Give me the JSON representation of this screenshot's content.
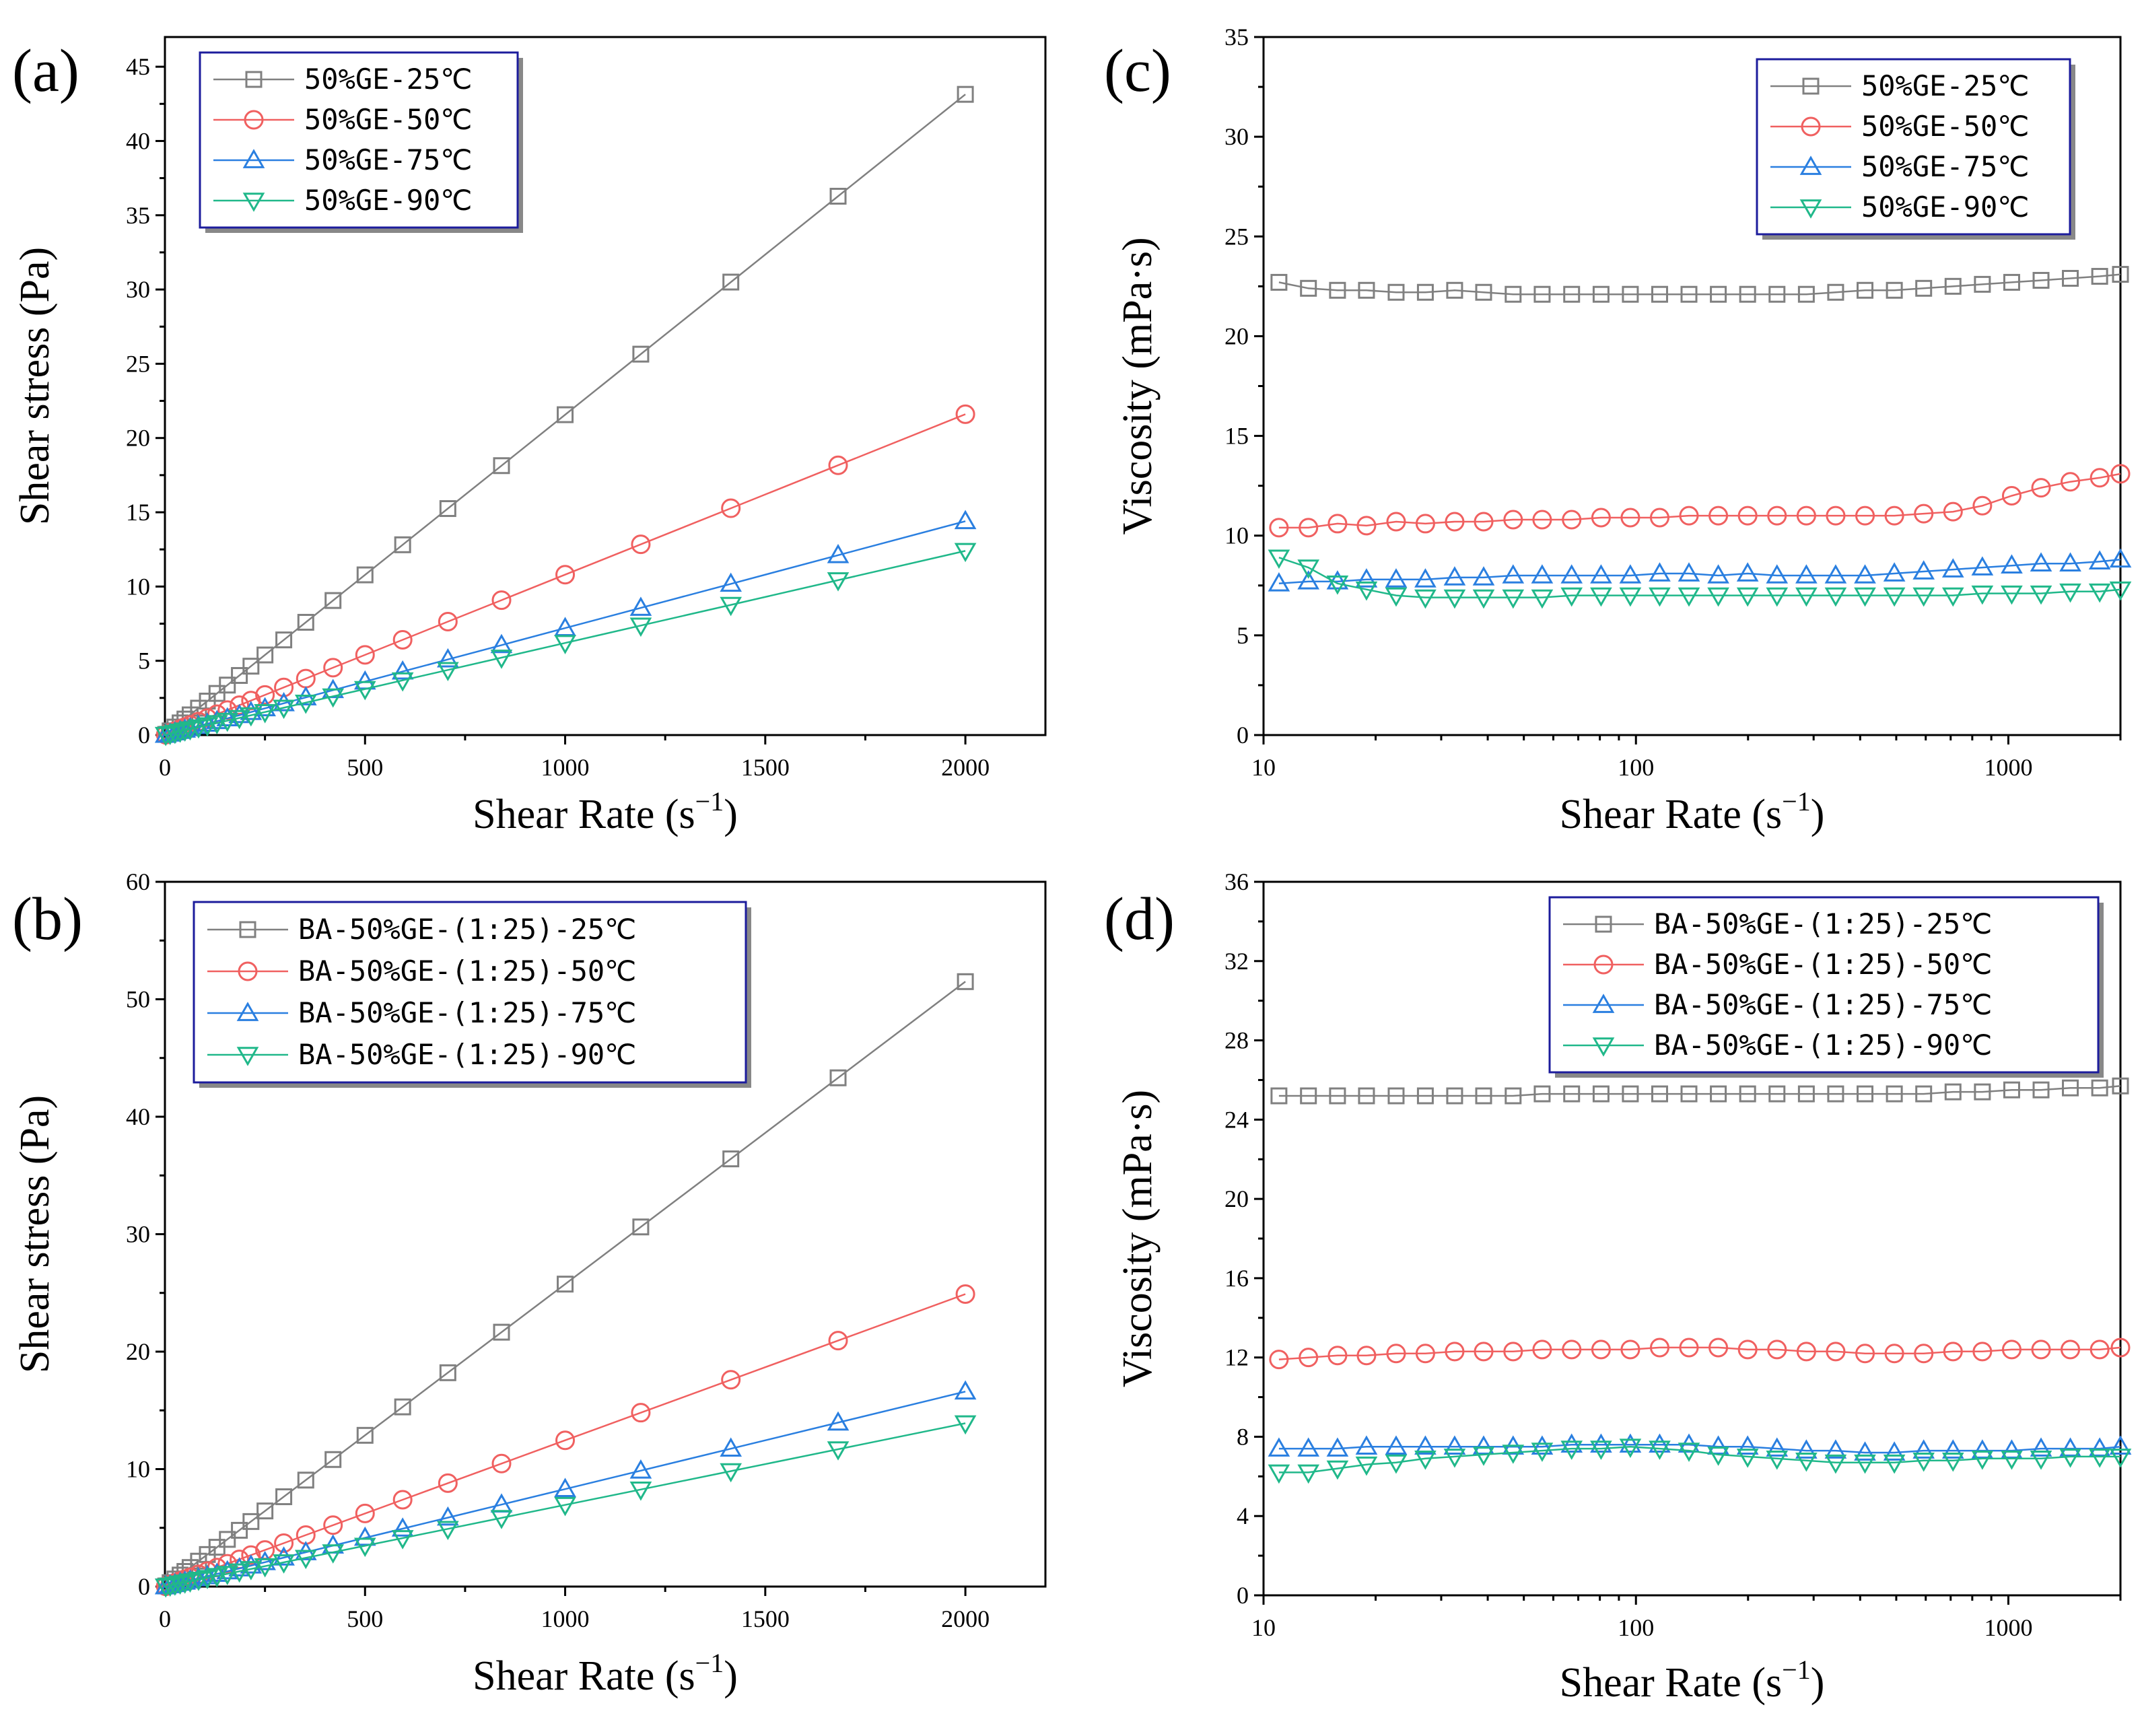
{
  "colors": {
    "s25": "#808080",
    "s50": "#f06060",
    "s75": "#2a7fe0",
    "s90": "#20b88a"
  },
  "chart_data": [
    {
      "panel": "(a)",
      "type": "line",
      "xscale": "linear",
      "xlabel": "Shear Rate (s",
      "xlabel_sup": "−1",
      "xlabel_close": ")",
      "ylabel": "Shear stress (Pa)",
      "xlim": [
        0,
        2200
      ],
      "ylim": [
        0,
        47
      ],
      "xticks": [
        0,
        500,
        1000,
        1500,
        2000
      ],
      "yticks": [
        0,
        5,
        10,
        15,
        20,
        25,
        30,
        35,
        40,
        45
      ],
      "x": [
        2,
        13,
        25,
        38,
        50,
        63,
        84,
        106,
        130,
        156,
        186,
        215,
        250,
        297,
        352,
        420,
        500,
        594,
        707,
        841,
        1000,
        1189,
        1414,
        1682,
        2000
      ],
      "series": [
        {
          "name": "50%GE-25℃",
          "marker": "square",
          "color_key": "s25",
          "slope": 0.02157
        },
        {
          "name": "50%GE-50℃",
          "marker": "circle",
          "color_key": "s50",
          "slope": 0.0108
        },
        {
          "name": "50%GE-75℃",
          "marker": "triangle-up",
          "color_key": "s75",
          "slope": 0.0072
        },
        {
          "name": "50%GE-90℃",
          "marker": "triangle-down",
          "color_key": "s90",
          "slope": 0.0062
        }
      ]
    },
    {
      "panel": "(b)",
      "type": "line",
      "xscale": "linear",
      "xlabel": "Shear Rate (s",
      "xlabel_sup": "−1",
      "xlabel_close": ")",
      "ylabel": "Shear stress (Pa)",
      "xlim": [
        0,
        2200
      ],
      "ylim": [
        0,
        60
      ],
      "xticks": [
        0,
        500,
        1000,
        1500,
        2000
      ],
      "yticks": [
        0,
        10,
        20,
        30,
        40,
        50,
        60
      ],
      "x": [
        2,
        13,
        25,
        38,
        50,
        63,
        84,
        106,
        130,
        156,
        186,
        215,
        250,
        297,
        352,
        420,
        500,
        594,
        707,
        841,
        1000,
        1189,
        1414,
        1682,
        2000
      ],
      "series": [
        {
          "name": "BA-50%GE-(1:25)-25℃",
          "marker": "square",
          "color_key": "s25",
          "slope": 0.02575
        },
        {
          "name": "BA-50%GE-(1:25)-50℃",
          "marker": "circle",
          "color_key": "s50",
          "slope": 0.01245
        },
        {
          "name": "BA-50%GE-(1:25)-75℃",
          "marker": "triangle-up",
          "color_key": "s75",
          "slope": 0.0083
        },
        {
          "name": "BA-50%GE-(1:25)-90℃",
          "marker": "triangle-down",
          "color_key": "s90",
          "slope": 0.00695
        }
      ]
    },
    {
      "panel": "(c)",
      "type": "line",
      "xscale": "log",
      "xlabel": "Shear Rate (s",
      "xlabel_sup": "−1",
      "xlabel_close": ")",
      "ylabel": "Viscosity (mPa·s)",
      "xlim": [
        10,
        2000
      ],
      "ylim": [
        0,
        35
      ],
      "xticks": [
        10,
        100,
        1000
      ],
      "yticks": [
        0,
        5,
        10,
        15,
        20,
        25,
        30,
        35
      ],
      "x": [
        11,
        13.2,
        15.8,
        18.9,
        22.7,
        27.2,
        32.6,
        39,
        46.8,
        56,
        67.2,
        80.6,
        96.6,
        115.8,
        138.8,
        166.4,
        199.5,
        239.2,
        286.8,
        343.8,
        412.2,
        494.2,
        592.5,
        710.3,
        851.6,
        1021,
        1224,
        1467,
        1759,
        2000
      ],
      "series": [
        {
          "name": "50%GE-25℃",
          "marker": "square",
          "color_key": "s25",
          "values": [
            22.7,
            22.4,
            22.3,
            22.3,
            22.2,
            22.2,
            22.3,
            22.2,
            22.1,
            22.1,
            22.1,
            22.1,
            22.1,
            22.1,
            22.1,
            22.1,
            22.1,
            22.1,
            22.1,
            22.2,
            22.3,
            22.3,
            22.4,
            22.5,
            22.6,
            22.7,
            22.8,
            22.9,
            23,
            23.1
          ]
        },
        {
          "name": "50%GE-50℃",
          "marker": "circle",
          "color_key": "s50",
          "values": [
            10.4,
            10.4,
            10.6,
            10.5,
            10.7,
            10.6,
            10.7,
            10.7,
            10.8,
            10.8,
            10.8,
            10.9,
            10.9,
            10.9,
            11,
            11,
            11,
            11,
            11,
            11,
            11,
            11,
            11.1,
            11.2,
            11.5,
            12,
            12.4,
            12.7,
            12.9,
            13.1
          ]
        },
        {
          "name": "50%GE-75℃",
          "marker": "triangle-up",
          "color_key": "s75",
          "values": [
            7.6,
            7.7,
            7.7,
            7.8,
            7.8,
            7.8,
            7.9,
            7.9,
            8,
            8,
            8,
            8,
            8,
            8.1,
            8.1,
            8,
            8.1,
            8,
            8,
            8,
            8,
            8.1,
            8.2,
            8.3,
            8.4,
            8.5,
            8.6,
            8.6,
            8.7,
            8.8
          ]
        },
        {
          "name": "50%GE-90℃",
          "marker": "triangle-down",
          "color_key": "s90",
          "values": [
            8.9,
            8.4,
            7.6,
            7.3,
            7,
            6.9,
            6.9,
            6.9,
            6.9,
            6.9,
            7,
            7,
            7,
            7,
            7,
            7,
            7,
            7,
            7,
            7,
            7,
            7,
            7,
            7,
            7.1,
            7.1,
            7.1,
            7.2,
            7.2,
            7.3
          ]
        }
      ]
    },
    {
      "panel": "(d)",
      "type": "line",
      "xscale": "log",
      "xlabel": "Shear Rate (s",
      "xlabel_sup": "−1",
      "xlabel_close": ")",
      "ylabel": "Viscosity (mPa·s)",
      "xlim": [
        10,
        2000
      ],
      "ylim": [
        0,
        36
      ],
      "xticks": [
        10,
        100,
        1000
      ],
      "yticks": [
        0,
        4,
        8,
        12,
        16,
        20,
        24,
        28,
        32,
        36
      ],
      "x": [
        11,
        13.2,
        15.8,
        18.9,
        22.7,
        27.2,
        32.6,
        39,
        46.8,
        56,
        67.2,
        80.6,
        96.6,
        115.8,
        138.8,
        166.4,
        199.5,
        239.2,
        286.8,
        343.8,
        412.2,
        494.2,
        592.5,
        710.3,
        851.6,
        1021,
        1224,
        1467,
        1759,
        2000
      ],
      "series": [
        {
          "name": "BA-50%GE-(1:25)-25℃",
          "marker": "square",
          "color_key": "s25",
          "values": [
            25.2,
            25.2,
            25.2,
            25.2,
            25.2,
            25.2,
            25.2,
            25.2,
            25.2,
            25.3,
            25.3,
            25.3,
            25.3,
            25.3,
            25.3,
            25.3,
            25.3,
            25.3,
            25.3,
            25.3,
            25.3,
            25.3,
            25.3,
            25.4,
            25.4,
            25.5,
            25.5,
            25.6,
            25.6,
            25.7
          ]
        },
        {
          "name": "BA-50%GE-(1:25)-50℃",
          "marker": "circle",
          "color_key": "s50",
          "values": [
            11.9,
            12,
            12.1,
            12.1,
            12.2,
            12.2,
            12.3,
            12.3,
            12.3,
            12.4,
            12.4,
            12.4,
            12.4,
            12.5,
            12.5,
            12.5,
            12.4,
            12.4,
            12.3,
            12.3,
            12.2,
            12.2,
            12.2,
            12.3,
            12.3,
            12.4,
            12.4,
            12.4,
            12.4,
            12.5
          ]
        },
        {
          "name": "BA-50%GE-(1:25)-75℃",
          "marker": "triangle-up",
          "color_key": "s75",
          "values": [
            7.4,
            7.4,
            7.4,
            7.5,
            7.5,
            7.5,
            7.5,
            7.5,
            7.5,
            7.5,
            7.6,
            7.6,
            7.6,
            7.6,
            7.6,
            7.5,
            7.5,
            7.4,
            7.3,
            7.3,
            7.2,
            7.2,
            7.3,
            7.3,
            7.3,
            7.3,
            7.4,
            7.4,
            7.4,
            7.5
          ]
        },
        {
          "name": "BA-50%GE-(1:25)-90℃",
          "marker": "triangle-down",
          "color_key": "s90",
          "values": [
            6.2,
            6.2,
            6.4,
            6.6,
            6.7,
            6.9,
            7,
            7.1,
            7.2,
            7.3,
            7.4,
            7.4,
            7.5,
            7.4,
            7.3,
            7.1,
            7,
            6.9,
            6.8,
            6.7,
            6.7,
            6.7,
            6.8,
            6.8,
            6.9,
            6.9,
            6.9,
            7,
            7,
            7
          ]
        }
      ]
    }
  ]
}
